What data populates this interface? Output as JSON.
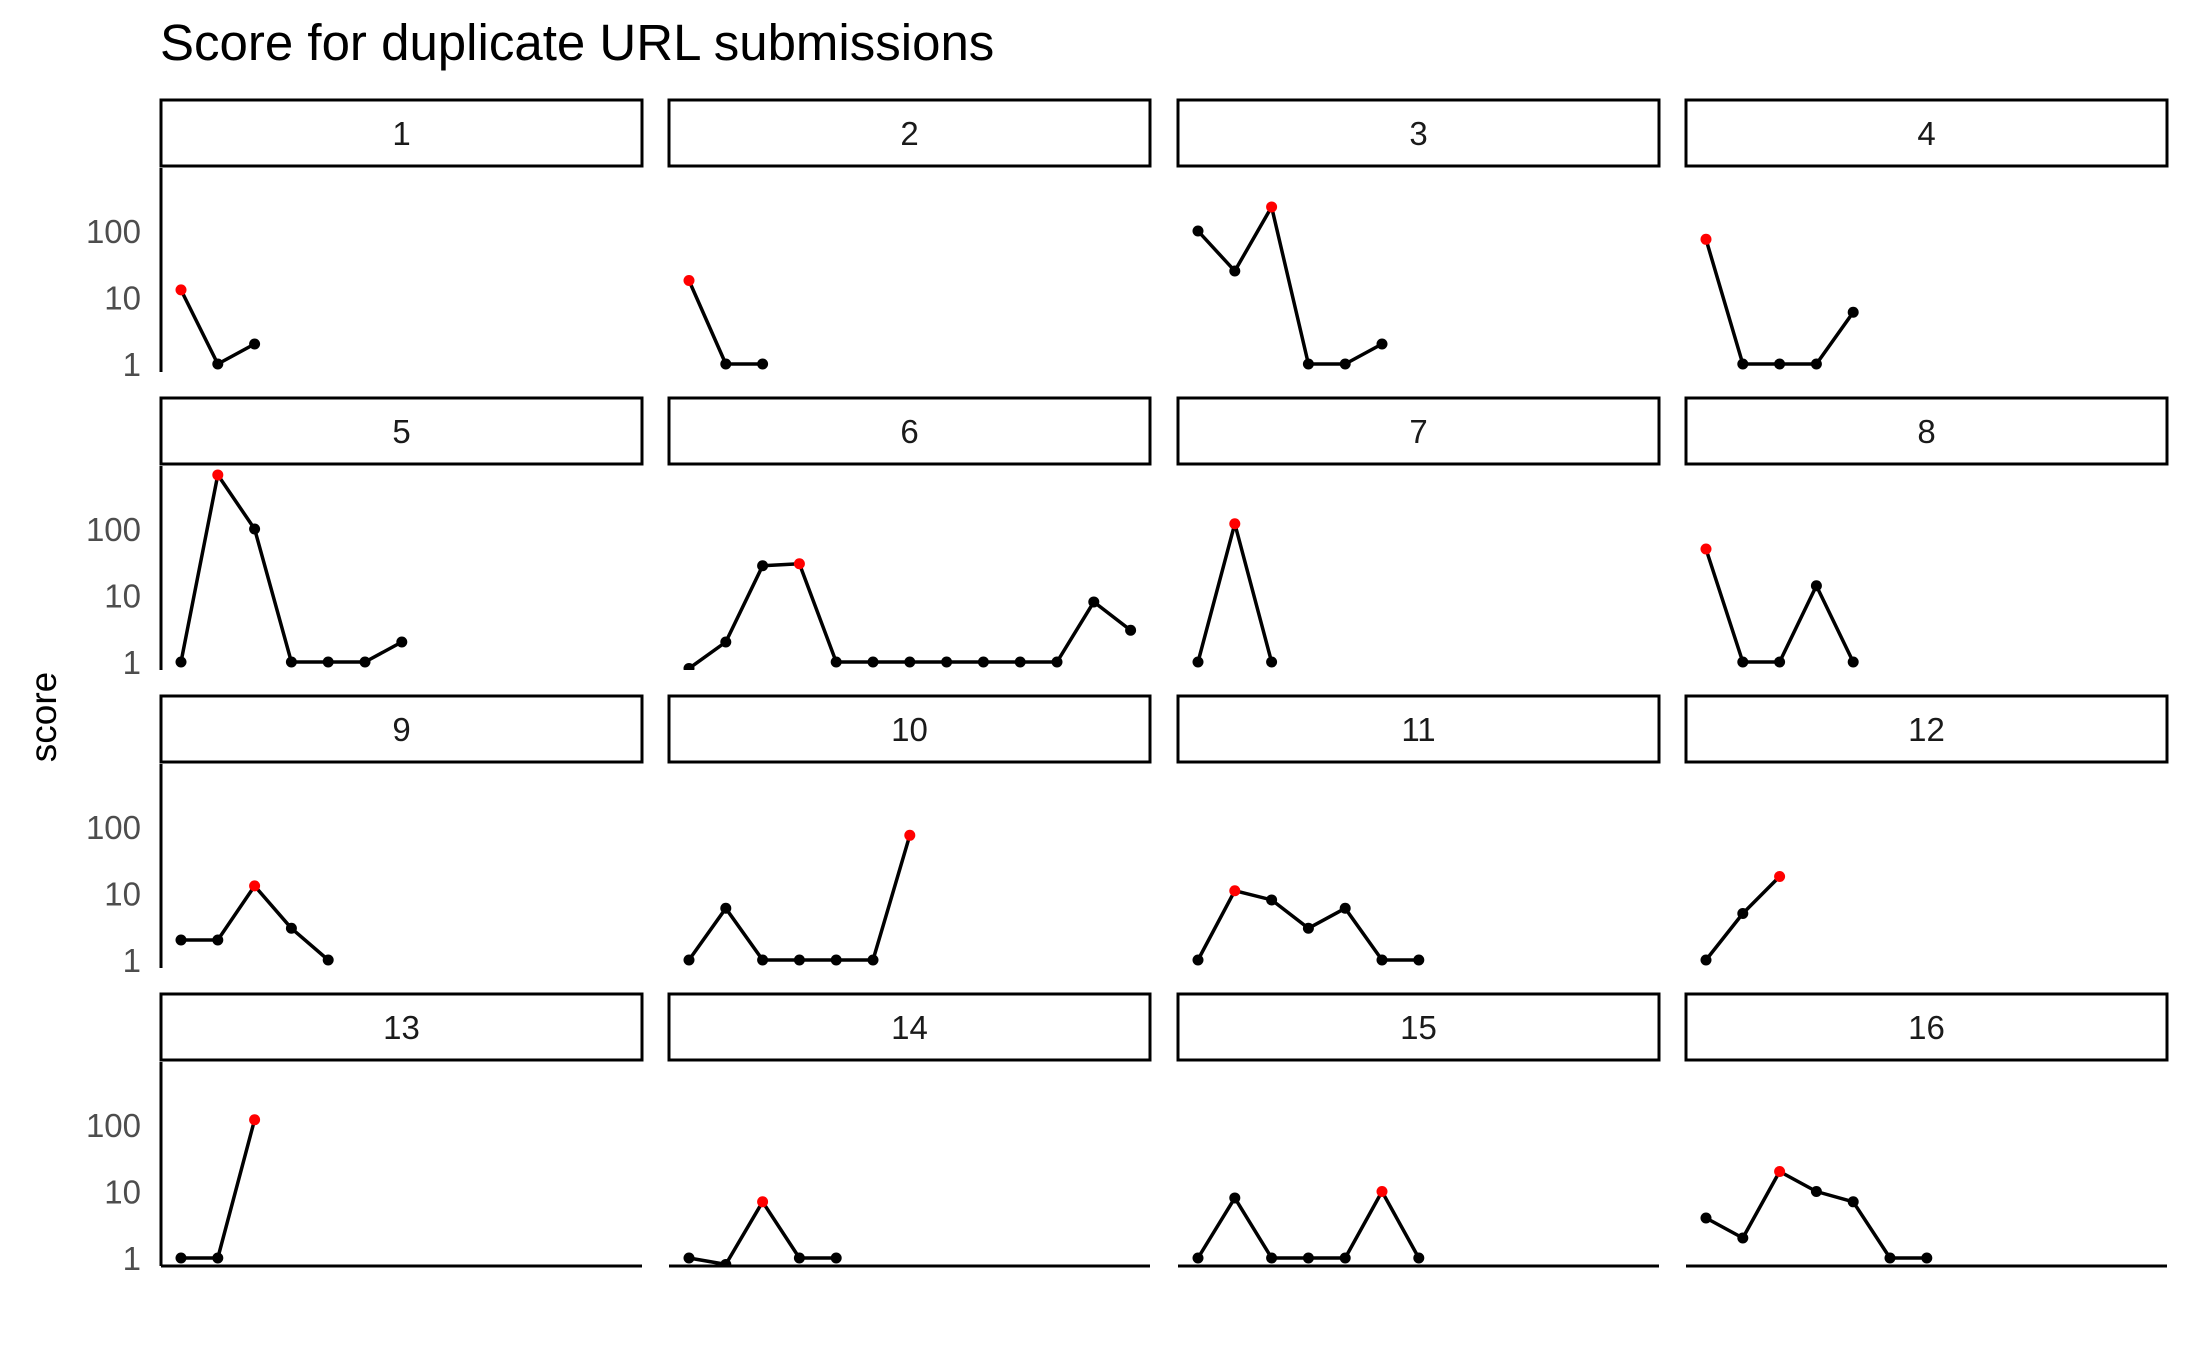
{
  "chart_data": {
    "type": "line",
    "title": "Score for duplicate URL submissions",
    "ylabel": "score",
    "xlabel": "",
    "yscale": "log",
    "ylim": [
      1,
      1000
    ],
    "yticks": [
      1,
      10,
      100
    ],
    "ytick_labels": [
      "1",
      "10",
      "100"
    ],
    "grid": false,
    "colors": {
      "line": "#000000",
      "point": "#000000",
      "highlight": "#ff0000"
    },
    "panels": [
      {
        "label": "1",
        "values": [
          13,
          1,
          2
        ],
        "highlight_index": 0
      },
      {
        "label": "2",
        "values": [
          18,
          1,
          1
        ],
        "highlight_index": 0
      },
      {
        "label": "3",
        "values": [
          100,
          25,
          230,
          1,
          1,
          2
        ],
        "highlight_index": 2
      },
      {
        "label": "4",
        "values": [
          75,
          1,
          1,
          1,
          6
        ],
        "highlight_index": 0
      },
      {
        "label": "5",
        "values": [
          1,
          650,
          100,
          1,
          1,
          1,
          2
        ],
        "highlight_index": 1
      },
      {
        "label": "6",
        "values": [
          0.8,
          2,
          28,
          30,
          1,
          1,
          1,
          1,
          1,
          1,
          1,
          8,
          3
        ],
        "highlight_index": 3
      },
      {
        "label": "7",
        "values": [
          1,
          120,
          1
        ],
        "highlight_index": 1
      },
      {
        "label": "8",
        "values": [
          50,
          1,
          1,
          14,
          1
        ],
        "highlight_index": 0
      },
      {
        "label": "9",
        "values": [
          2,
          2,
          13,
          3,
          1
        ],
        "highlight_index": 2
      },
      {
        "label": "10",
        "values": [
          1,
          6,
          1,
          1,
          1,
          1,
          75
        ],
        "highlight_index": 6
      },
      {
        "label": "11",
        "values": [
          1,
          11,
          8,
          3,
          6,
          1,
          1
        ],
        "highlight_index": 1
      },
      {
        "label": "12",
        "values": [
          1,
          5,
          18
        ],
        "highlight_index": 2
      },
      {
        "label": "13",
        "values": [
          1,
          1,
          120
        ],
        "highlight_index": 2
      },
      {
        "label": "14",
        "values": [
          1,
          0.8,
          7,
          1,
          1
        ],
        "highlight_index": 2
      },
      {
        "label": "15",
        "values": [
          1,
          8,
          1,
          1,
          1,
          10,
          1
        ],
        "highlight_index": 5
      },
      {
        "label": "16",
        "values": [
          4,
          2,
          20,
          10,
          7,
          1,
          1
        ],
        "highlight_index": 2
      }
    ]
  }
}
